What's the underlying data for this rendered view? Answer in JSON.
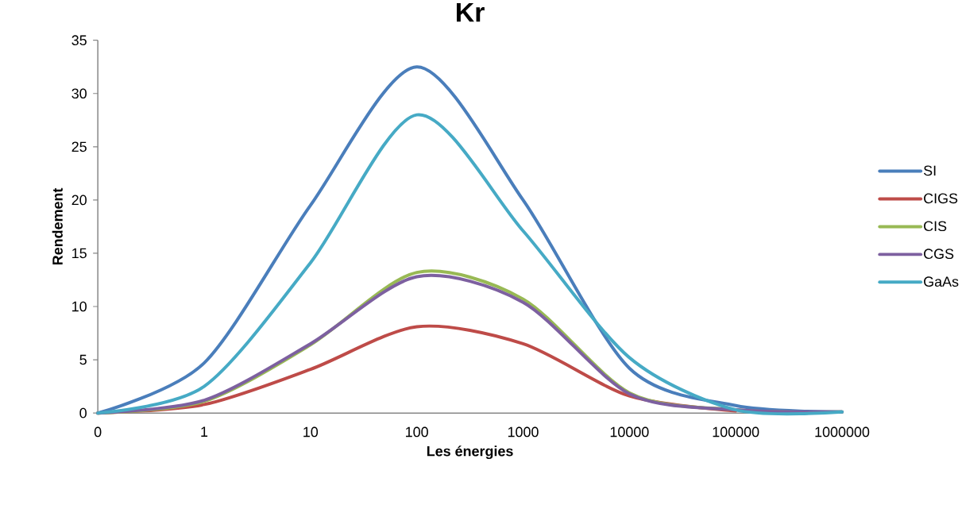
{
  "chart_data": {
    "type": "line",
    "title": "Kr",
    "xlabel": "Les énergies",
    "ylabel": "Rendement",
    "categories": [
      "0",
      "1",
      "10",
      "100",
      "1000",
      "10000",
      "100000",
      "1000000"
    ],
    "series": [
      {
        "name": "SI",
        "color": "#4a7ebb",
        "values": [
          0,
          4.7,
          19.5,
          32.5,
          20,
          4.2,
          0.7,
          0.1
        ]
      },
      {
        "name": "CIGS",
        "color": "#be4b48",
        "values": [
          0,
          0.8,
          4.1,
          8.1,
          6.5,
          1.6,
          0.2,
          null
        ]
      },
      {
        "name": "CIS",
        "color": "#98b954",
        "values": [
          0,
          1.1,
          6.4,
          13.2,
          10.7,
          1.9,
          0.3,
          0.1
        ]
      },
      {
        "name": "CGS",
        "color": "#7d60a0",
        "values": [
          0,
          1.2,
          6.5,
          12.8,
          10.4,
          1.8,
          0.3,
          0.1
        ]
      },
      {
        "name": "GaAs",
        "color": "#46aac5",
        "values": [
          0,
          2.5,
          14.1,
          28,
          17.1,
          5.2,
          0.3,
          0.1
        ]
      }
    ],
    "ylim": [
      0,
      35
    ],
    "yticks": [
      0,
      5,
      10,
      15,
      20,
      25,
      30,
      35
    ],
    "legend": "right",
    "marker": "none",
    "line_style": "solid",
    "grid": false
  }
}
